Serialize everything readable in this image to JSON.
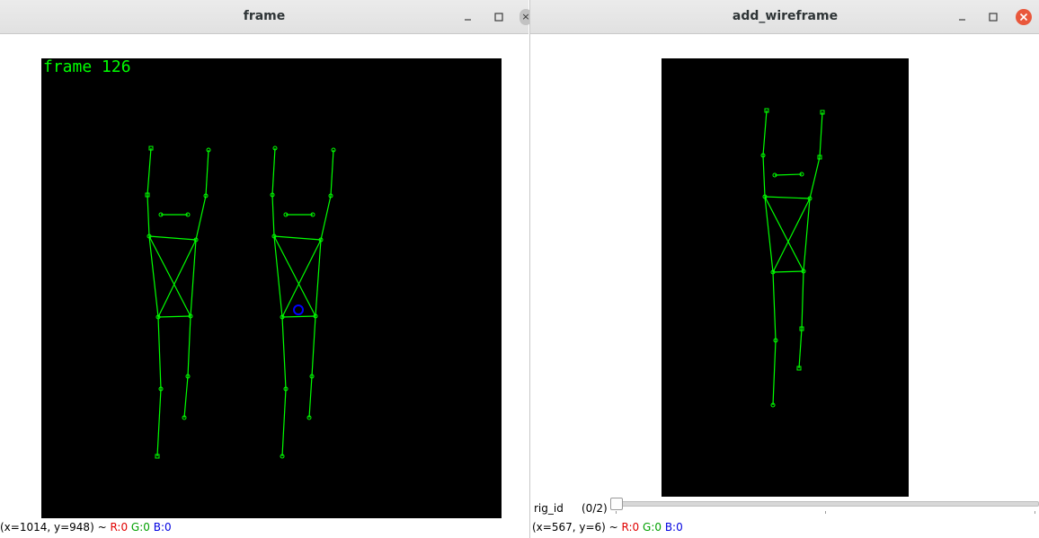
{
  "windows": {
    "frame": {
      "title": "frame",
      "overlay_text": "frame 126",
      "status": {
        "coords": "(x=1014, y=948) ~ ",
        "r": "R:0",
        "g": "G:0",
        "b": "B:0"
      },
      "cutoff_text": "…"
    },
    "wire": {
      "title": "add_wireframe",
      "trackbar": {
        "label": "rig_id",
        "value_text": "(0/2)",
        "value": 0,
        "max": 2
      },
      "status": {
        "coords": "(x=567, y=6) ~ ",
        "r": "R:0",
        "g": "G:0",
        "b": "B:0"
      }
    }
  },
  "colors": {
    "wireframe": "#00ff00",
    "marker": "#0000ff",
    "background": "#000000"
  },
  "icons": {
    "minimize": "minimize-icon",
    "maximize": "maximize-icon",
    "close": "close-icon"
  }
}
